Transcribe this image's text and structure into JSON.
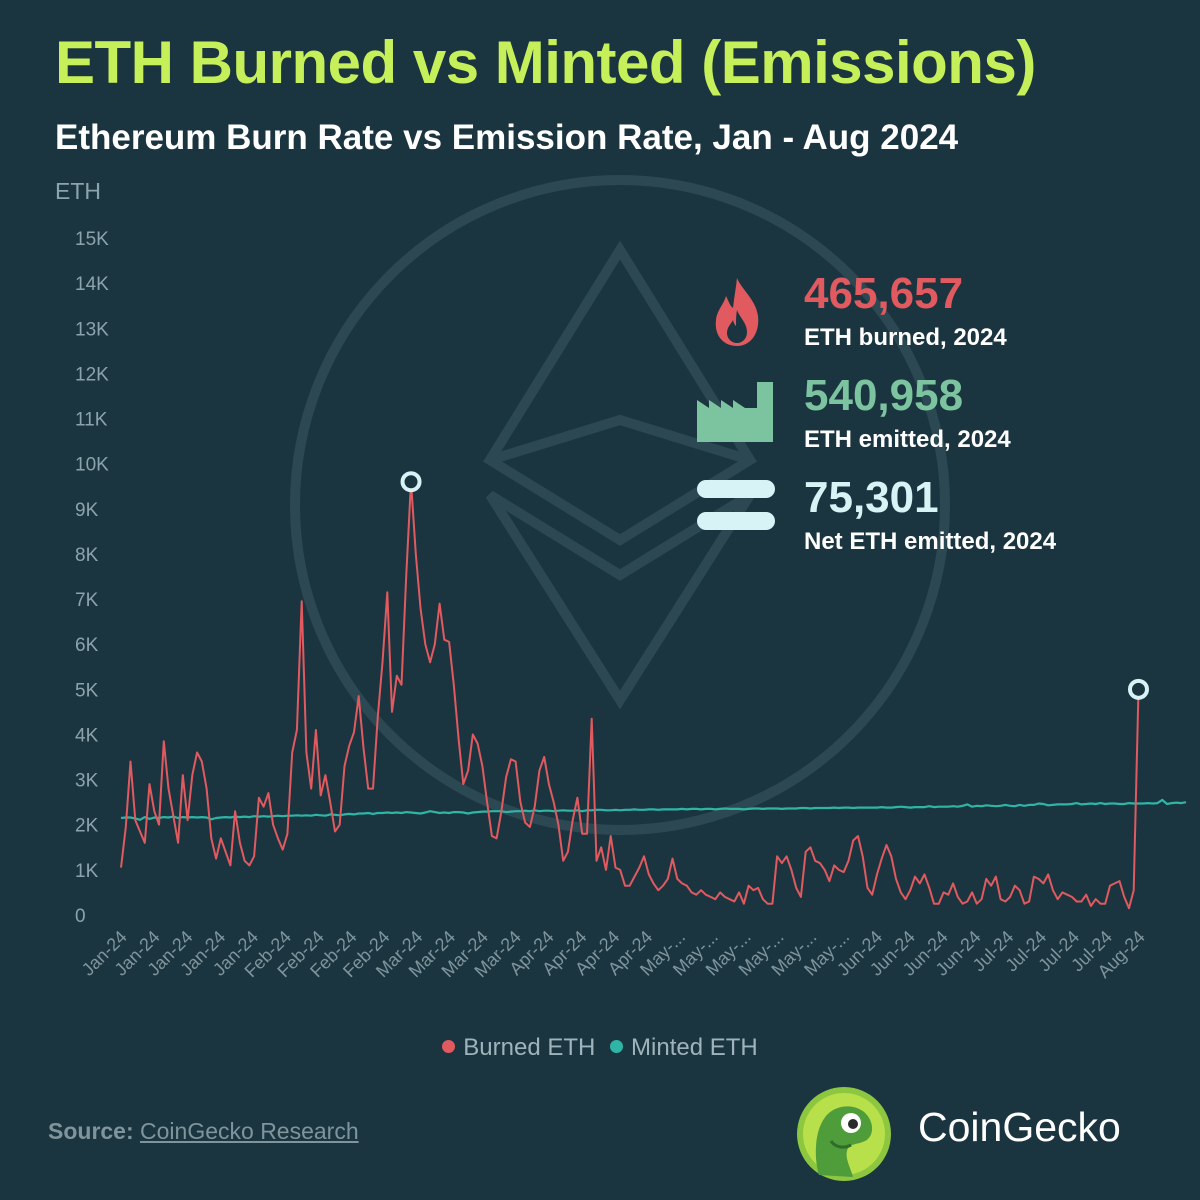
{
  "title": "ETH Burned vs Minted (Emissions)",
  "subtitle": "Ethereum Burn Rate vs Emission Rate, Jan - Aug 2024",
  "stats": [
    {
      "value": "465,657",
      "label": "ETH burned, 2024",
      "icon": "flame-icon",
      "color": "#e05a5f"
    },
    {
      "value": "540,958",
      "label": "ETH emitted, 2024",
      "icon": "factory-icon",
      "color": "#7cc4a0"
    },
    {
      "value": "75,301",
      "label": "Net ETH emitted, 2024",
      "icon": "equals-icon",
      "color": "#d8f3f6"
    }
  ],
  "legend": [
    {
      "label": "Burned ETH",
      "color": "#e05a5f"
    },
    {
      "label": "Minted ETH",
      "color": "#2fb5a6"
    }
  ],
  "source": {
    "label": "Source:",
    "value": "CoinGecko Research"
  },
  "brand": {
    "name": "CoinGecko"
  },
  "colors": {
    "background": "#1b3540",
    "title": "#c6f05a",
    "burned": "#e05a5f",
    "minted": "#2fb5a6"
  },
  "chart_data": {
    "type": "line",
    "ylabel": "ETH",
    "ylim": [
      0,
      15000
    ],
    "yticks": [
      "0",
      "1K",
      "2K",
      "3K",
      "4K",
      "5K",
      "6K",
      "7K",
      "8K",
      "9K",
      "10K",
      "11K",
      "12K",
      "13K",
      "14K",
      "15K"
    ],
    "x_ticks": [
      "Jan-24",
      "Jan-24",
      "Jan-24",
      "Jan-24",
      "Jan-24",
      "Feb-24",
      "Feb-24",
      "Feb-24",
      "Feb-24",
      "Mar-24",
      "Mar-24",
      "Mar-24",
      "Mar-24",
      "Apr-24",
      "Apr-24",
      "Apr-24",
      "Apr-24",
      "May-...",
      "May-...",
      "May-...",
      "May-...",
      "May-...",
      "May-...",
      "Jun-24",
      "Jun-24",
      "Jun-24",
      "Jun-24",
      "Jul-24",
      "Jul-24",
      "Jul-24",
      "Jul-24",
      "Aug-24"
    ],
    "x_count": 217,
    "series": [
      {
        "name": "Burned ETH",
        "color": "#e05a5f",
        "values": [
          1050,
          1950,
          3400,
          2100,
          1850,
          1600,
          2900,
          2300,
          2000,
          3850,
          2800,
          2200,
          1600,
          3100,
          2100,
          3100,
          3600,
          3400,
          2800,
          1700,
          1250,
          1700,
          1400,
          1100,
          2300,
          1600,
          1200,
          1100,
          1300,
          2600,
          2400,
          2700,
          2000,
          1700,
          1450,
          1800,
          3600,
          4100,
          6950,
          3600,
          2800,
          4100,
          2650,
          3100,
          2500,
          1850,
          2000,
          3300,
          3750,
          4050,
          4850,
          3700,
          2800,
          2800,
          4400,
          5600,
          7150,
          4500,
          5300,
          5100,
          7550,
          9600,
          8000,
          6800,
          6000,
          5600,
          6000,
          6900,
          6100,
          6050,
          5100,
          3900,
          2900,
          3200,
          4000,
          3800,
          3300,
          2500,
          1750,
          1700,
          2300,
          3050,
          3450,
          3400,
          2500,
          2050,
          1950,
          2400,
          3200,
          3500,
          2900,
          2500,
          2000,
          1200,
          1400,
          2100,
          2600,
          1800,
          1800,
          4350,
          1200,
          1500,
          1000,
          1750,
          1050,
          1000,
          650,
          650,
          850,
          1050,
          1300,
          900,
          700,
          550,
          650,
          800,
          1250,
          800,
          700,
          650,
          500,
          450,
          550,
          450,
          400,
          350,
          500,
          400,
          350,
          300,
          500,
          250,
          650,
          550,
          600,
          350,
          250,
          250,
          1300,
          1150,
          1300,
          1000,
          600,
          400,
          1400,
          1500,
          1200,
          1150,
          1000,
          750,
          1100,
          1000,
          950,
          1200,
          1650,
          1750,
          1300,
          600,
          450,
          900,
          1250,
          1550,
          1300,
          800,
          500,
          350,
          550,
          850,
          700,
          900,
          600,
          250,
          250,
          500,
          450,
          700,
          400,
          250,
          300,
          500,
          250,
          350,
          800,
          650,
          850,
          350,
          300,
          400,
          650,
          550,
          250,
          300,
          850,
          800,
          700,
          900,
          550,
          350,
          500,
          450,
          400,
          300,
          300,
          450,
          200,
          350,
          250,
          250,
          650,
          700,
          750,
          400,
          150,
          550,
          5000
        ]
      },
      {
        "name": "Minted ETH",
        "color": "#2fb5a6",
        "values": [
          2150,
          2160,
          2160,
          2140,
          2110,
          2170,
          2130,
          2160,
          2150,
          2170,
          2160,
          2180,
          2150,
          2170,
          2160,
          2170,
          2160,
          2170,
          2160,
          2120,
          2150,
          2160,
          2170,
          2160,
          2180,
          2170,
          2180,
          2170,
          2190,
          2180,
          2190,
          2180,
          2190,
          2200,
          2190,
          2200,
          2200,
          2210,
          2200,
          2210,
          2200,
          2220,
          2210,
          2200,
          2230,
          2220,
          2210,
          2230,
          2240,
          2230,
          2250,
          2250,
          2260,
          2240,
          2260,
          2260,
          2270,
          2260,
          2270,
          2260,
          2280,
          2270,
          2260,
          2250,
          2270,
          2300,
          2280,
          2260,
          2270,
          2260,
          2280,
          2280,
          2270,
          2250,
          2270,
          2280,
          2290,
          2290,
          2300,
          2300,
          2300,
          2280,
          2290,
          2300,
          2300,
          2310,
          2300,
          2320,
          2300,
          2310,
          2310,
          2300,
          2310,
          2320,
          2310,
          2310,
          2320,
          2300,
          2320,
          2320,
          2330,
          2330,
          2320,
          2320,
          2330,
          2320,
          2330,
          2330,
          2340,
          2330,
          2330,
          2340,
          2340,
          2330,
          2340,
          2340,
          2340,
          2340,
          2350,
          2340,
          2350,
          2350,
          2340,
          2350,
          2350,
          2340,
          2350,
          2360,
          2350,
          2350,
          2350,
          2340,
          2350,
          2360,
          2360,
          2350,
          2360,
          2360,
          2360,
          2350,
          2360,
          2360,
          2360,
          2370,
          2370,
          2360,
          2370,
          2370,
          2370,
          2370,
          2380,
          2370,
          2380,
          2380,
          2370,
          2380,
          2380,
          2380,
          2380,
          2380,
          2390,
          2380,
          2380,
          2390,
          2400,
          2390,
          2380,
          2390,
          2390,
          2390,
          2410,
          2390,
          2400,
          2400,
          2400,
          2410,
          2400,
          2420,
          2450,
          2400,
          2420,
          2410,
          2430,
          2420,
          2410,
          2420,
          2440,
          2420,
          2410,
          2440,
          2420,
          2440,
          2440,
          2470,
          2460,
          2430,
          2440,
          2450,
          2450,
          2450,
          2460,
          2480,
          2450,
          2460,
          2470,
          2460,
          2480,
          2460,
          2470,
          2470,
          2460,
          2460,
          2480,
          2470,
          2470,
          2470,
          2480,
          2470,
          2480,
          2550,
          2460,
          2480,
          2490,
          2480,
          2500
        ]
      }
    ]
  }
}
